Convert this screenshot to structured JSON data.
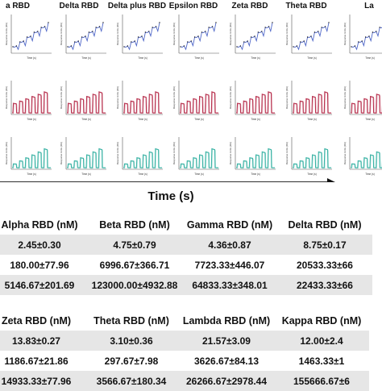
{
  "panel_titles": [
    "a RBD",
    "Delta RBD",
    "Delta plus RBD",
    "Epsilon RBD",
    "Zeta RBD",
    "Theta RBD",
    "La"
  ],
  "axis_text": {
    "top_ylabel": "Response Units (RU)",
    "top_xlabel": "Time (s)",
    "mid_ylabel": "Response Units (RU)",
    "mid_xlabel": "Time (s)",
    "bot_ylabel": "Response Units (RU)",
    "bot_xlabel": "Time (s)"
  },
  "time_axis_label": "Time (s)",
  "colors": {
    "top": "#4f67c8",
    "middle": "#b8324f",
    "bottom": "#3bb3a5"
  },
  "table1": {
    "headers": [
      "Alpha RBD (nM)",
      "Beta RBD (nM)",
      "Gamma RBD (nM)",
      "Delta RBD (nM)"
    ],
    "rows": [
      [
        "2.45±0.30",
        "4.75±0.79",
        "4.36±0.87",
        "8.75±0.17"
      ],
      [
        "180.00±77.96",
        "6996.67±366.71",
        "7723.33±446.07",
        "20533.33±66"
      ],
      [
        "5146.67±201.69",
        "123000.00±4932.88",
        "64833.33±348.01",
        "22433.33±66"
      ]
    ]
  },
  "table2": {
    "headers": [
      "Zeta RBD (nM)",
      "Theta RBD (nM)",
      "Lambda RBD (nM)",
      "Kappa RBD (nM)"
    ],
    "rows": [
      [
        "13.83±0.27",
        "3.10±0.36",
        "21.57±3.09",
        "12.00±2.4"
      ],
      [
        "1186.67±21.86",
        "297.67±7.98",
        "3626.67±84.13",
        "1463.33±1"
      ],
      [
        "14933.33±77.96",
        "3566.67±180.34",
        "26266.67±2978.44",
        "155666.67±6"
      ]
    ]
  }
}
